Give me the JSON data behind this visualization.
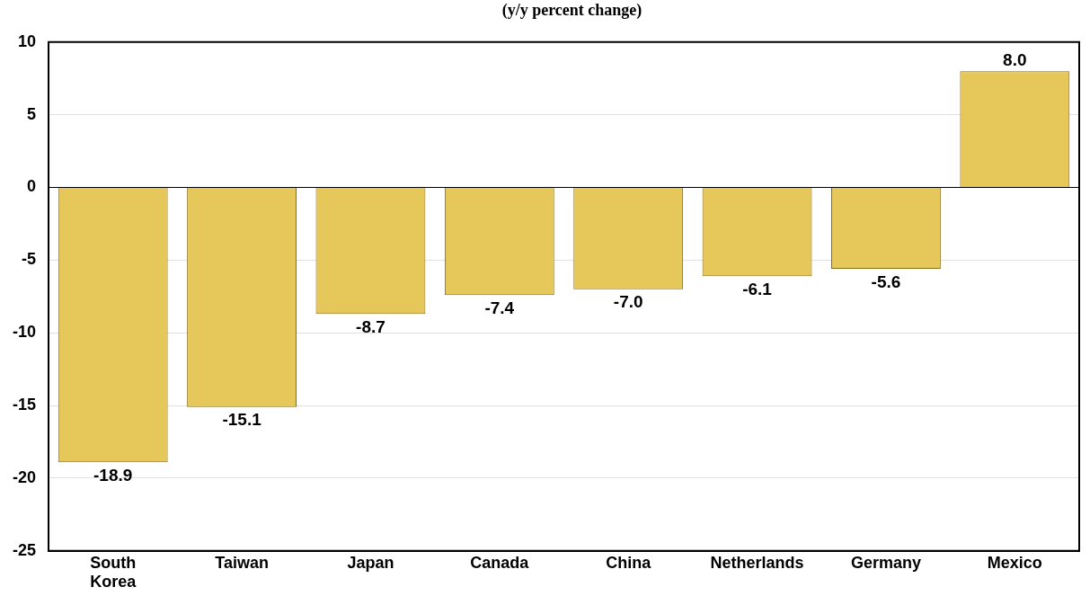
{
  "chart_data": {
    "type": "bar",
    "title": "(y/y percent change)",
    "categories": [
      "South Korea",
      "Taiwan",
      "Japan",
      "Canada",
      "China",
      "Netherlands",
      "Germany",
      "Mexico"
    ],
    "values": [
      -18.9,
      -15.1,
      -8.7,
      -7.4,
      -7.0,
      -6.1,
      -5.6,
      8.0
    ],
    "color": "#e6c75a",
    "ylim": [
      -25,
      10
    ],
    "yticks": [
      -25,
      -20,
      -15,
      -10,
      -5,
      0,
      5,
      10
    ],
    "value_labels": [
      "-18.9",
      "-15.1",
      "-8.7",
      "-7.4",
      "-7.0",
      "-6.1",
      "-5.6",
      "8.0"
    ],
    "grid": "y",
    "legend": false
  }
}
